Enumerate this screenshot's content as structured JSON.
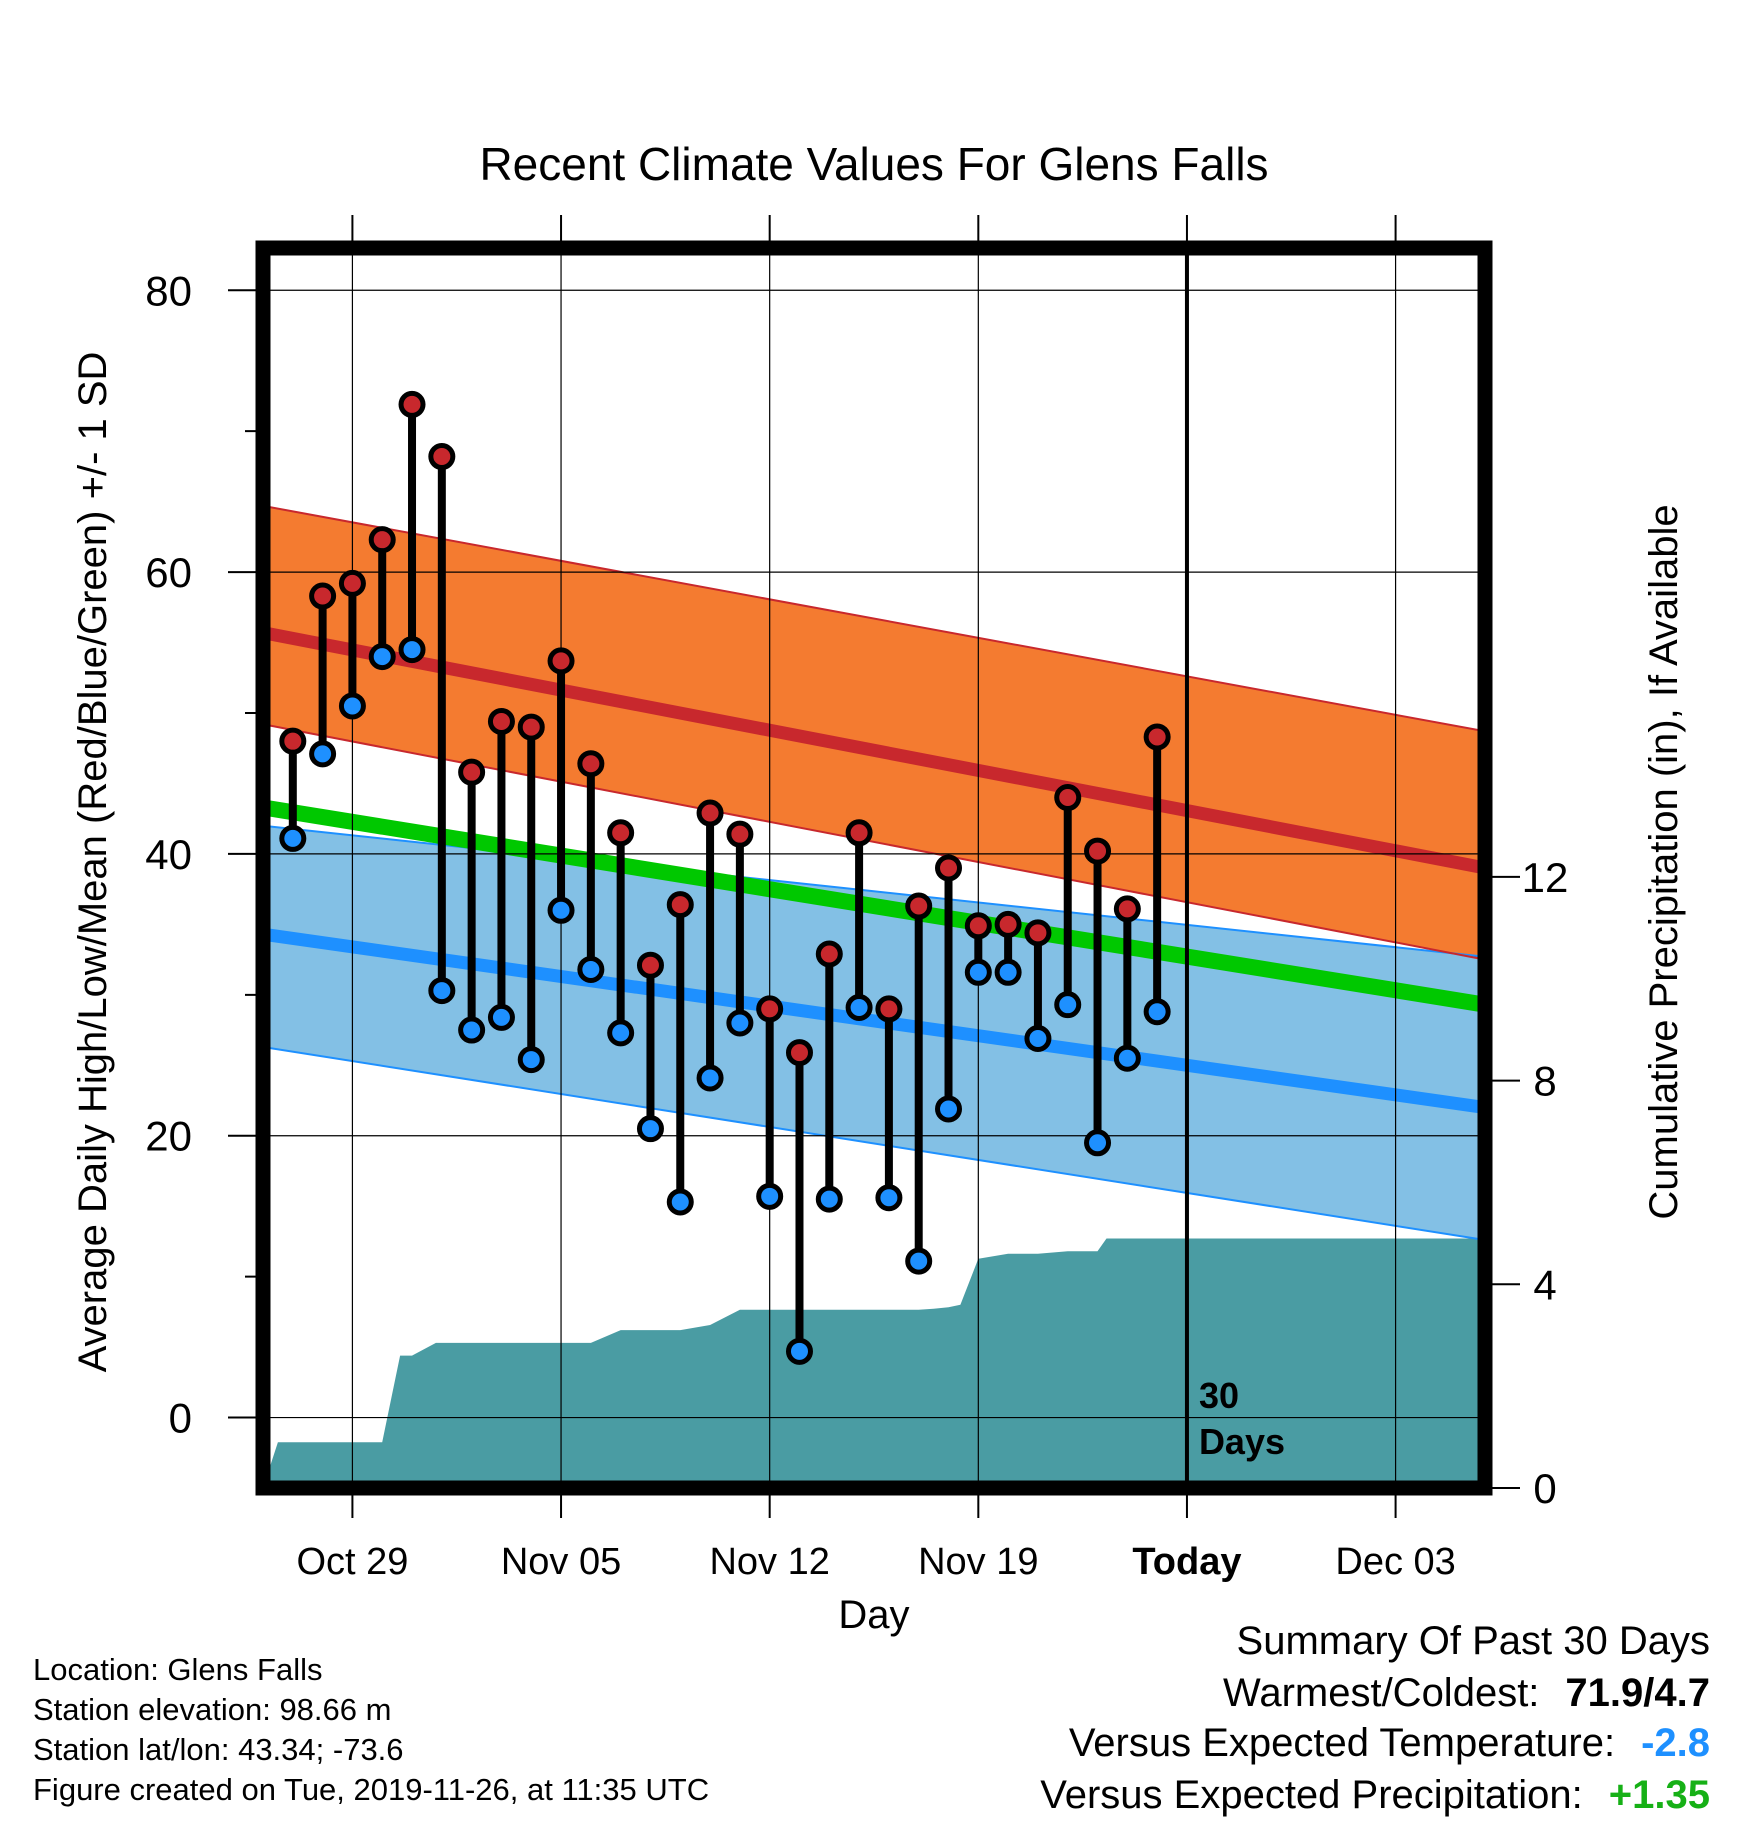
{
  "chart_data": {
    "type": "line",
    "title": "Recent Climate Values For Glens Falls",
    "xlabel": "Day",
    "ylabel": "Average Daily High/Low/Mean (Red/Blue/Green) +/- 1 SD",
    "y2label": "Cumulative Precipitation (in), If Available",
    "x_tick_labels": [
      "Oct 29",
      "Nov 05",
      "Nov 12",
      "Nov 19",
      "Today",
      "Dec 03"
    ],
    "x_tick_days": [
      3,
      10,
      17,
      24,
      31,
      38
    ],
    "x_start_date": "2019-10-26",
    "x_range_days": [
      0,
      41
    ],
    "ylim": [
      -5,
      83
    ],
    "y_ticks": [
      0,
      20,
      40,
      60,
      80
    ],
    "y2lim": [
      0,
      24.35
    ],
    "y2_ticks": [
      0,
      4,
      8,
      12
    ],
    "today_label": "30\nDays",
    "today_day": 31,
    "grid": true,
    "days": [
      1,
      2,
      3,
      4,
      5,
      6,
      7,
      8,
      9,
      10,
      11,
      12,
      13,
      14,
      15,
      16,
      17,
      18,
      19,
      20,
      21,
      22,
      23,
      24,
      25,
      26,
      27,
      28,
      29,
      30
    ],
    "series": [
      {
        "name": "Observed High",
        "color": "#c8282d",
        "values": [
          48,
          58.3,
          59.2,
          62.3,
          71.9,
          68.2,
          45.8,
          49.4,
          49,
          53.7,
          46.4,
          41.5,
          32.1,
          36.4,
          42.9,
          41.4,
          29,
          25.9,
          32.9,
          41.5,
          29,
          36.3,
          39,
          34.9,
          35,
          34.4,
          44,
          40.2,
          36.1,
          48.3
        ]
      },
      {
        "name": "Observed Low",
        "color": "#1e90ff",
        "values": [
          41.1,
          47.1,
          50.5,
          54,
          54.5,
          30.3,
          27.5,
          28.4,
          25.4,
          36,
          31.8,
          27.3,
          20.5,
          15.3,
          24.1,
          28,
          15.7,
          4.7,
          15.5,
          29.1,
          15.6,
          11.1,
          21.9,
          31.6,
          31.6,
          26.9,
          29.3,
          19.5,
          25.5,
          28.8
        ]
      }
    ],
    "normals": {
      "days": [
        0,
        41
      ],
      "high_mean": [
        55.7,
        39.0
      ],
      "high_upper": [
        64.7,
        48.7
      ],
      "high_lower": [
        49.2,
        32.5
      ],
      "low_mean": [
        34.3,
        22.0
      ],
      "low_upper": [
        42.0,
        32.7
      ],
      "low_lower": [
        26.3,
        12.6
      ],
      "mean": [
        43.3,
        29.3
      ]
    },
    "precipitation": {
      "days": [
        0,
        0.5,
        1,
        2,
        3,
        4,
        4.6,
        5,
        5.8,
        6,
        7,
        8,
        9,
        10,
        11,
        12,
        13,
        14,
        15,
        16,
        16.5,
        17,
        18,
        19,
        20,
        21,
        22,
        22.5,
        23,
        23.4,
        24,
        25,
        26,
        27,
        28,
        28.3,
        29,
        30,
        41
      ],
      "values": [
        0,
        0.9,
        0.9,
        0.9,
        0.9,
        0.9,
        2.6,
        2.6,
        2.85,
        2.85,
        2.85,
        2.85,
        2.85,
        2.85,
        2.85,
        3.1,
        3.1,
        3.1,
        3.2,
        3.5,
        3.5,
        3.5,
        3.5,
        3.5,
        3.5,
        3.5,
        3.5,
        3.52,
        3.55,
        3.6,
        4.5,
        4.6,
        4.6,
        4.65,
        4.65,
        4.9,
        4.9,
        4.9,
        4.9
      ]
    }
  },
  "info": {
    "location": "Location: Glens Falls",
    "elevation": "Station elevation: 98.66 m",
    "latlon": "Station lat/lon: 43.34; -73.6",
    "created": "Figure created on Tue, 2019-11-26, at 11:35 UTC"
  },
  "summary": {
    "heading": "Summary Of Past 30 Days",
    "warmest_label": "Warmest/Coldest:",
    "warmest_value": "71.9/4.7",
    "temp_label": "Versus Expected Temperature:",
    "temp_value": "-2.8",
    "precip_label": "Versus Expected Precipitation:",
    "precip_value": "+1.35"
  },
  "colors": {
    "high_band": "#f47b30",
    "high_line": "#c8282d",
    "low_band": "#83c0e5",
    "low_line": "#1e90ff",
    "mean_line": "#00c800",
    "overlap_band": "#921515",
    "precip_fill": "#4a9ca3",
    "temp_versus": "#1e90ff",
    "precip_versus": "#16b016"
  }
}
